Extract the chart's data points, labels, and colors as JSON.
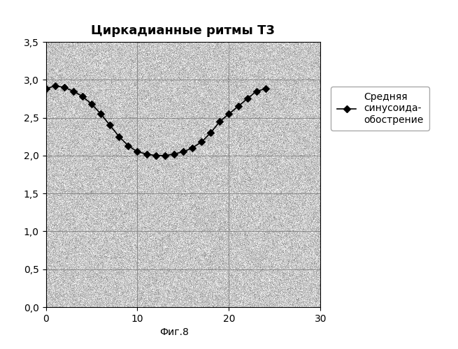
{
  "title": "Циркадианные ритмы Т3",
  "caption": "Фиг.8",
  "legend_label": "Средняя\nсинусоида-\nобострение",
  "x_data": [
    0,
    1,
    2,
    3,
    4,
    5,
    6,
    7,
    8,
    9,
    10,
    11,
    12,
    13,
    14,
    15,
    16,
    17,
    18,
    19,
    20,
    21,
    22,
    23,
    24
  ],
  "y_data": [
    2.88,
    2.92,
    2.9,
    2.85,
    2.78,
    2.68,
    2.55,
    2.4,
    2.25,
    2.13,
    2.05,
    2.02,
    2.0,
    2.0,
    2.02,
    2.05,
    2.1,
    2.18,
    2.3,
    2.45,
    2.55,
    2.65,
    2.75,
    2.85,
    2.88
  ],
  "xlim": [
    0,
    30
  ],
  "ylim": [
    0.0,
    3.5
  ],
  "xticks": [
    0,
    10,
    20,
    30
  ],
  "yticks": [
    0.0,
    0.5,
    1.0,
    1.5,
    2.0,
    2.5,
    3.0,
    3.5
  ],
  "ytick_labels": [
    "0,0",
    "0,5",
    "1,0",
    "1,5",
    "2,0",
    "2,5",
    "3,0",
    "3,5"
  ],
  "line_color": "#000000",
  "marker": "D",
  "marker_size": 5,
  "marker_face_color": "#000000",
  "grid_color": "#888888",
  "noise_mean": 200,
  "noise_std": 25,
  "title_fontsize": 13,
  "tick_fontsize": 10,
  "legend_fontsize": 10
}
